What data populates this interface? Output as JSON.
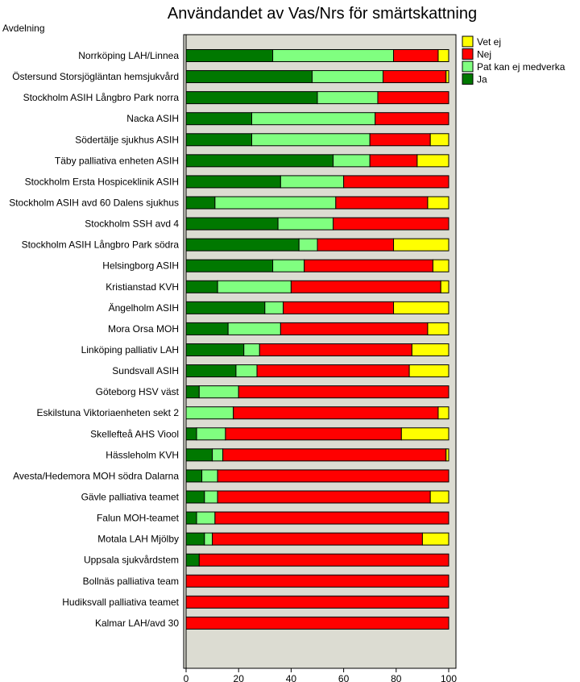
{
  "chart_data": {
    "type": "bar",
    "orientation": "horizontal",
    "stacked": true,
    "title": "Användandet av Vas/Nrs för smärtskattning",
    "ylabel": "Avdelning",
    "xlabel": "",
    "xlim": [
      0,
      100
    ],
    "xticks": [
      "0",
      "20",
      "40",
      "60",
      "80",
      "100"
    ],
    "legend_position": "right",
    "legend_order": [
      "Vet ej",
      "Nej",
      "Pat kan ej medverka",
      "Ja"
    ],
    "categories": [
      "Norrköping LAH/Linnea",
      "Östersund Storsjögläntan hemsjukvård",
      "Stockholm ASIH Långbro Park norra",
      "Nacka ASIH",
      "Södertälje sjukhus ASIH",
      "Täby palliativa enheten ASIH",
      "Stockholm Ersta Hospiceklinik ASIH",
      "Stockholm ASIH avd 60 Dalens sjukhus",
      "Stockholm SSH avd 4",
      "Stockholm ASIH Långbro Park södra",
      "Helsingborg ASIH",
      "Kristianstad KVH",
      "Ängelholm ASIH",
      "Mora Orsa MOH",
      "Linköping palliativ LAH",
      "Sundsvall ASIH",
      "Göteborg HSV väst",
      "Eskilstuna Viktoriaenheten sekt 2",
      "Skellefteå AHS Viool",
      "Hässleholm KVH",
      "Avesta/Hedemora MOH södra Dalarna",
      "Gävle palliativa teamet",
      "Falun MOH-teamet",
      "Motala LAH Mjölby",
      "Uppsala sjukvårdstem",
      "Bollnäs palliativa team",
      "Hudiksvall palliativa teamet",
      "Kalmar LAH/avd 30"
    ],
    "series": [
      {
        "name": "Ja",
        "color": "#007800",
        "values": [
          33,
          48,
          50,
          25,
          25,
          56,
          36,
          11,
          35,
          43,
          33,
          12,
          30,
          16,
          22,
          19,
          5,
          0,
          4,
          10,
          6,
          7,
          4,
          7,
          5,
          0,
          0,
          0
        ]
      },
      {
        "name": "Pat kan ej medverka",
        "color": "#80ff80",
        "values": [
          46,
          27,
          23,
          47,
          45,
          14,
          24,
          46,
          21,
          7,
          12,
          28,
          7,
          20,
          6,
          8,
          15,
          18,
          11,
          4,
          6,
          5,
          7,
          3,
          0,
          0,
          0,
          0
        ]
      },
      {
        "name": "Nej",
        "color": "#ff0000",
        "values": [
          17,
          24,
          27,
          28,
          23,
          18,
          40,
          35,
          44,
          29,
          49,
          57,
          42,
          56,
          58,
          58,
          80,
          78,
          67,
          85,
          88,
          81,
          89,
          80,
          95,
          100,
          100,
          100
        ]
      },
      {
        "name": "Vet ej",
        "color": "#ffff00",
        "values": [
          4,
          1,
          0,
          0,
          7,
          12,
          0,
          8,
          0,
          21,
          6,
          3,
          21,
          8,
          14,
          15,
          0,
          4,
          18,
          1,
          0,
          7,
          0,
          10,
          0,
          0,
          0,
          0
        ]
      }
    ]
  },
  "colors": {
    "plot_background": "#dcdcd2",
    "bar_outline": "#000000"
  }
}
